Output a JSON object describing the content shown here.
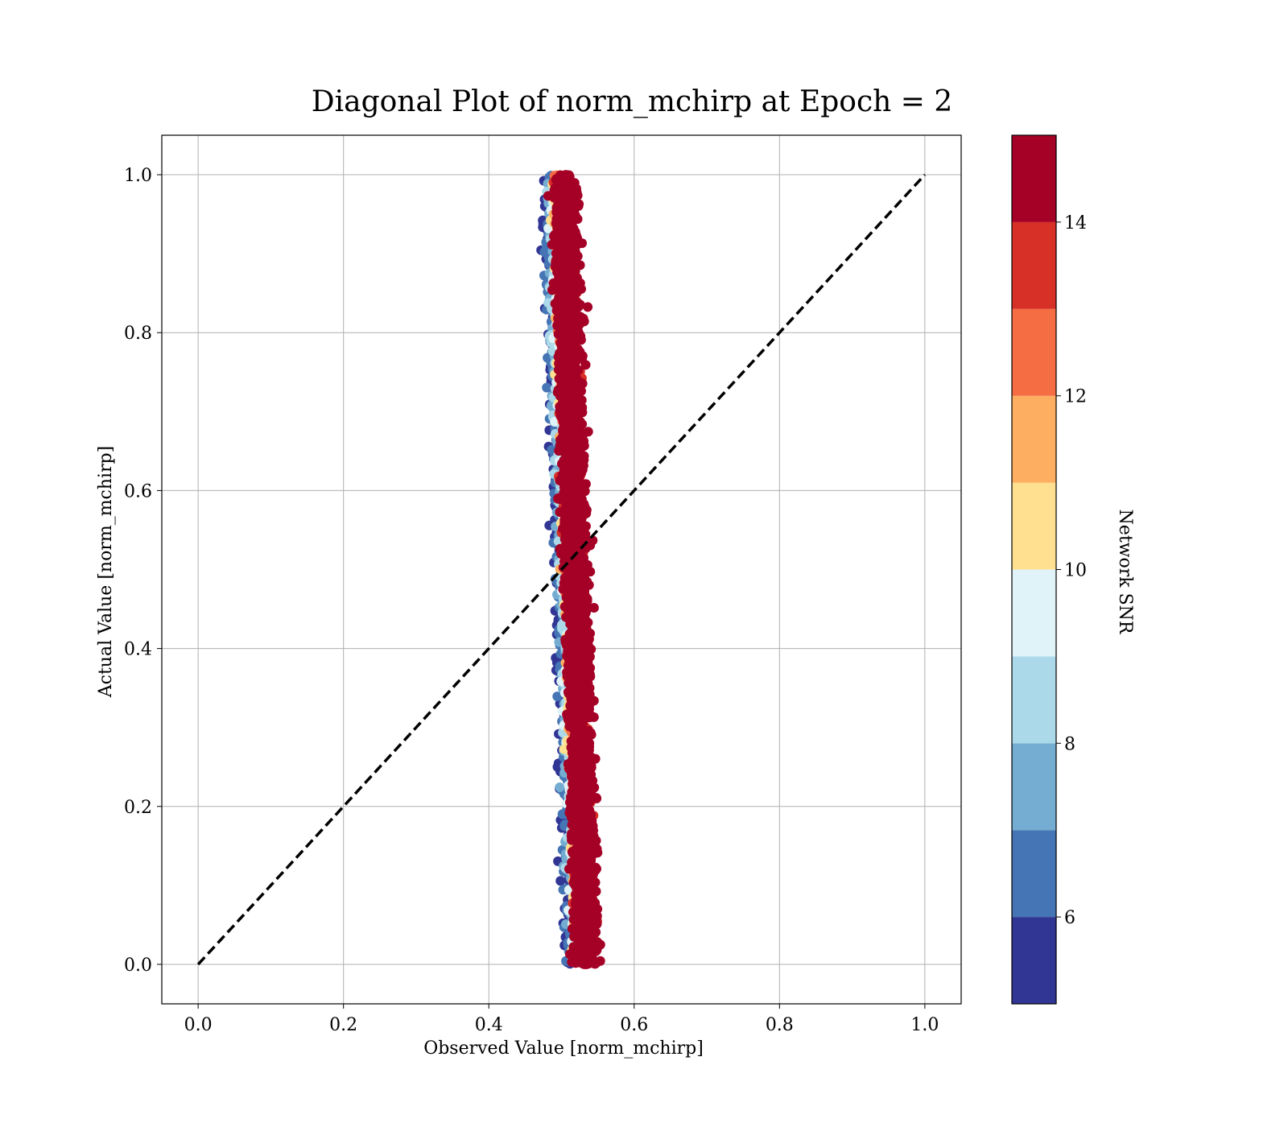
{
  "chart_data": {
    "type": "scatter",
    "title": "Diagonal Plot of norm_mchirp at Epoch = 2",
    "xlabel": "Observed Value [norm_mchirp]",
    "ylabel": "Actual Value [norm_mchirp]",
    "xlim": [
      -0.05,
      1.05
    ],
    "ylim": [
      -0.05,
      1.05
    ],
    "xticks": [
      0.0,
      0.2,
      0.4,
      0.6,
      0.8,
      1.0
    ],
    "xtick_labels": [
      "0.0",
      "0.2",
      "0.4",
      "0.6",
      "0.8",
      "1.0"
    ],
    "yticks": [
      0.0,
      0.2,
      0.4,
      0.6,
      0.8,
      1.0
    ],
    "ytick_labels": [
      "0.0",
      "0.2",
      "0.4",
      "0.6",
      "0.8",
      "1.0"
    ],
    "grid": true,
    "reference_line": {
      "style": "dashed",
      "color": "#000000",
      "from": [
        0.0,
        0.0
      ],
      "to": [
        1.0,
        1.0
      ]
    },
    "points_summary": {
      "description_note": "dense vertical band of points; observed values cluster near 0.5 regardless of actual value",
      "observed_center_at_actual_0": 0.535,
      "observed_center_at_actual_1": 0.505,
      "observed_min": 0.46,
      "observed_max": 0.575,
      "actual_range": [
        0.0,
        1.0
      ],
      "high_snr_offset": 0.025
    },
    "colorbar": {
      "label": "Network SNR",
      "vmin": 5,
      "vmax": 15,
      "ticks": [
        6,
        8,
        10,
        12,
        14
      ],
      "tick_labels": [
        "6",
        "8",
        "10",
        "12",
        "14"
      ],
      "colors": [
        "#313695",
        "#4575b4",
        "#74add1",
        "#abd9e9",
        "#e0f3f8",
        "#fee090",
        "#fdae61",
        "#f46d43",
        "#d73027",
        "#a50026"
      ],
      "bin_edges": [
        5,
        6,
        7,
        8,
        9,
        10,
        11,
        12,
        13,
        14,
        15
      ]
    }
  }
}
